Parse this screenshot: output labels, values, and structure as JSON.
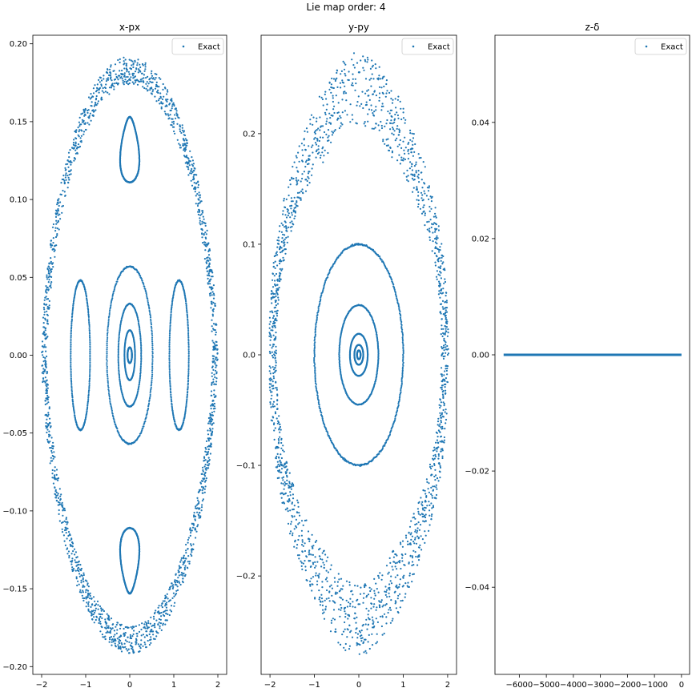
{
  "figure": {
    "suptitle": "Lie map order: 4"
  },
  "legend": {
    "label": "Exact",
    "position": "upper right"
  },
  "colors": {
    "series": "#1f77b4",
    "axes": "#000000",
    "legend_frame": "#cccccc"
  },
  "chart_data": [
    {
      "type": "scatter",
      "title": "x-px",
      "xlabel": "",
      "ylabel": "",
      "xlim": [
        -2.2,
        2.2
      ],
      "ylim": [
        -0.205,
        0.2055
      ],
      "xticks": [
        -2,
        -1,
        0,
        1,
        2
      ],
      "xtick_labels": [
        "−2",
        "−1",
        "0",
        "1",
        "2"
      ],
      "yticks": [
        -0.2,
        -0.15,
        -0.1,
        -0.05,
        0.0,
        0.05,
        0.1,
        0.15,
        0.2
      ],
      "ytick_labels": [
        "−0.20",
        "−0.15",
        "−0.10",
        "−0.05",
        "0.00",
        "0.05",
        "0.10",
        "0.15",
        "0.20"
      ],
      "series": [
        {
          "name": "Exact",
          "structures": [
            {
              "kind": "ellipse",
              "cx": 0,
              "cy": 0,
              "ax": 0.05,
              "ay": 0.005
            },
            {
              "kind": "ellipse",
              "cx": 0,
              "cy": 0,
              "ax": 0.12,
              "ay": 0.016
            },
            {
              "kind": "ellipse",
              "cx": 0,
              "cy": 0,
              "ax": 0.26,
              "ay": 0.033
            },
            {
              "kind": "ellipse",
              "cx": 0,
              "cy": 0,
              "ax": 0.52,
              "ay": 0.057
            },
            {
              "kind": "island",
              "cx": -1.12,
              "cy": 0,
              "ax": 0.22,
              "ay": 0.048
            },
            {
              "kind": "island",
              "cx": 1.12,
              "cy": 0,
              "ax": 0.22,
              "ay": 0.048
            },
            {
              "kind": "lobe",
              "cx": 0,
              "cy": 0.132,
              "ax": 0.46,
              "ay": 0.021,
              "dir": 1
            },
            {
              "kind": "lobe",
              "cx": 0,
              "cy": -0.132,
              "ax": 0.46,
              "ay": 0.021,
              "dir": -1
            },
            {
              "kind": "band",
              "cx": 0,
              "cy": 0,
              "ax_in": 1.88,
              "ax_out": 2.0,
              "ay_in": 0.174,
              "ay_out": 0.192
            }
          ]
        }
      ]
    },
    {
      "type": "scatter",
      "title": "y-py",
      "xlabel": "",
      "ylabel": "",
      "xlim": [
        -2.2,
        2.2
      ],
      "ylim": [
        -0.289,
        0.289
      ],
      "xticks": [
        -2,
        -1,
        0,
        1,
        2
      ],
      "xtick_labels": [
        "−2",
        "−1",
        "0",
        "1",
        "2"
      ],
      "yticks": [
        -0.2,
        -0.1,
        0.0,
        0.1,
        0.2
      ],
      "ytick_labels": [
        "−0.2",
        "−0.1",
        "0.0",
        "0.1",
        "0.2"
      ],
      "series": [
        {
          "name": "Exact",
          "structures": [
            {
              "kind": "ellipse",
              "cx": 0,
              "cy": 0,
              "ax": 0.04,
              "ay": 0.004
            },
            {
              "kind": "ellipse",
              "cx": 0,
              "cy": 0,
              "ax": 0.1,
              "ay": 0.009
            },
            {
              "kind": "ellipse",
              "cx": 0,
              "cy": 0,
              "ax": 0.2,
              "ay": 0.019
            },
            {
              "kind": "ellipse",
              "cx": 0,
              "cy": 0,
              "ax": 0.44,
              "ay": 0.045
            },
            {
              "kind": "ellipse",
              "cx": 0,
              "cy": 0,
              "ax": 1.0,
              "ay": 0.1
            },
            {
              "kind": "wavyband",
              "cx": 0,
              "cy": 0,
              "ax_in": 1.86,
              "ax_out": 2.02,
              "ay_in": 0.2,
              "ay_out": 0.263
            }
          ]
        }
      ]
    },
    {
      "type": "scatter",
      "title": "z-δ",
      "xlabel": "",
      "ylabel": "",
      "xlim": [
        -6900,
        300
      ],
      "ylim": [
        -0.055,
        0.055
      ],
      "xticks": [
        -6000,
        -5000,
        -4000,
        -3000,
        -2000,
        -1000,
        0
      ],
      "xtick_labels": [
        "−6000",
        "−5000",
        "−4000",
        "−3000",
        "−2000",
        "−1000",
        "0"
      ],
      "yticks": [
        -0.04,
        -0.02,
        0.0,
        0.02,
        0.04
      ],
      "ytick_labels": [
        "−0.04",
        "−0.02",
        "0.00",
        "0.02",
        "0.04"
      ],
      "series": [
        {
          "name": "Exact",
          "structures": [
            {
              "kind": "hline",
              "x0": -6580,
              "x1": 0,
              "y": 0
            }
          ]
        }
      ]
    }
  ]
}
